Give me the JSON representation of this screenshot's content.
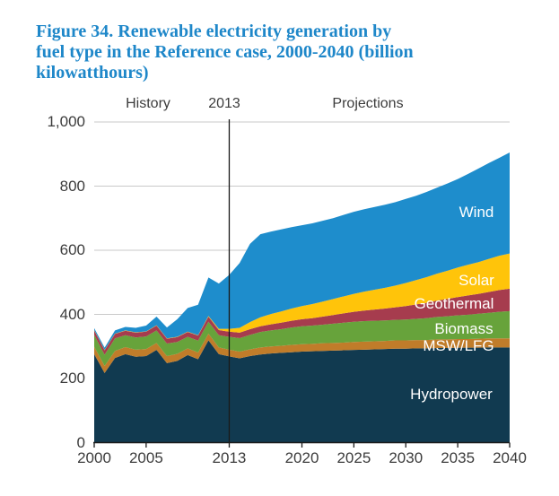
{
  "title": {
    "lines": [
      "Figure 34. Renewable electricity generation by",
      "fuel type in the Reference case, 2000-2040 (billion",
      "kilowatthours)"
    ],
    "color": "#1E87C9"
  },
  "annotations": {
    "history": "History",
    "divider_year": "2013",
    "projections": "Projections"
  },
  "chart_data": {
    "type": "area",
    "stacked": true,
    "title": "Figure 34. Renewable electricity generation by fuel type in the Reference case, 2000-2040 (billion kilowatthours)",
    "units": "billion kilowatthours",
    "x_start": 2000,
    "x_end": 2040,
    "ylim": [
      0,
      1000
    ],
    "y_ticks": [
      0,
      200,
      400,
      600,
      800,
      1000
    ],
    "y_tick_labels": [
      "0",
      "200",
      "400",
      "600",
      "800",
      "1,000"
    ],
    "x_ticks": [
      2000,
      2005,
      2013,
      2020,
      2025,
      2030,
      2035,
      2040
    ],
    "x_tick_labels": [
      "2000",
      "2005",
      "2013",
      "2020",
      "2025",
      "2030",
      "2035",
      "2040"
    ],
    "divider_x": 2013,
    "grid_on": true,
    "grid_color": "#c9c9c9",
    "axis_color": "#1a1a1a",
    "legend_position": "labels-inside-areas",
    "series": [
      {
        "name": "Hydropower",
        "color": "#113A50",
        "values": [
          276,
          217,
          264,
          276,
          268,
          270,
          289,
          248,
          255,
          273,
          260,
          319,
          276,
          269,
          263,
          270,
          275,
          278,
          280,
          282,
          284,
          285,
          286,
          287,
          288,
          289,
          290,
          291,
          292,
          293,
          293,
          294,
          294,
          295,
          295,
          296,
          296,
          296,
          297,
          297,
          297
        ]
      },
      {
        "name": "MSW/LFG",
        "color": "#C07C2A",
        "values": [
          23,
          22,
          22,
          22,
          22,
          22,
          22,
          22,
          22,
          21,
          21,
          21,
          21,
          21,
          21,
          21,
          22,
          22,
          22,
          23,
          23,
          23,
          24,
          24,
          24,
          25,
          25,
          25,
          25,
          26,
          26,
          26,
          26,
          27,
          27,
          27,
          27,
          28,
          28,
          28,
          28
        ]
      },
      {
        "name": "Biomass",
        "color": "#67A33B",
        "values": [
          37,
          35,
          39,
          37,
          38,
          39,
          39,
          39,
          37,
          36,
          37,
          37,
          38,
          40,
          42,
          45,
          48,
          50,
          52,
          54,
          56,
          57,
          58,
          60,
          62,
          63,
          64,
          64,
          64,
          64,
          65,
          66,
          68,
          70,
          72,
          74,
          76,
          78,
          80,
          83,
          85
        ]
      },
      {
        "name": "Geothermal",
        "color": "#A63C4E",
        "values": [
          14,
          14,
          14,
          14,
          15,
          15,
          15,
          15,
          15,
          15,
          16,
          16,
          16,
          16,
          17,
          18,
          18,
          19,
          20,
          21,
          22,
          23,
          25,
          27,
          29,
          31,
          33,
          35,
          37,
          39,
          42,
          45,
          48,
          51,
          54,
          57,
          60,
          62,
          65,
          68,
          70
        ]
      },
      {
        "name": "Solar",
        "color": "#FFC40A",
        "values": [
          1,
          1,
          1,
          1,
          1,
          1,
          1,
          1,
          1,
          1,
          1,
          2,
          4,
          9,
          15,
          22,
          28,
          32,
          35,
          38,
          41,
          44,
          47,
          50,
          53,
          56,
          59,
          62,
          65,
          68,
          72,
          76,
          80,
          84,
          88,
          92,
          96,
          99,
          103,
          107,
          110
        ]
      },
      {
        "name": "Wind",
        "color": "#1E8DCC",
        "values": [
          6,
          7,
          10,
          11,
          14,
          18,
          27,
          34,
          55,
          74,
          95,
          120,
          141,
          168,
          202,
          244,
          259,
          257,
          256,
          254,
          252,
          252,
          252,
          252,
          254,
          256,
          257,
          258,
          259,
          260,
          262,
          263,
          266,
          268,
          272,
          276,
          283,
          292,
          299,
          305,
          315
        ]
      }
    ]
  }
}
